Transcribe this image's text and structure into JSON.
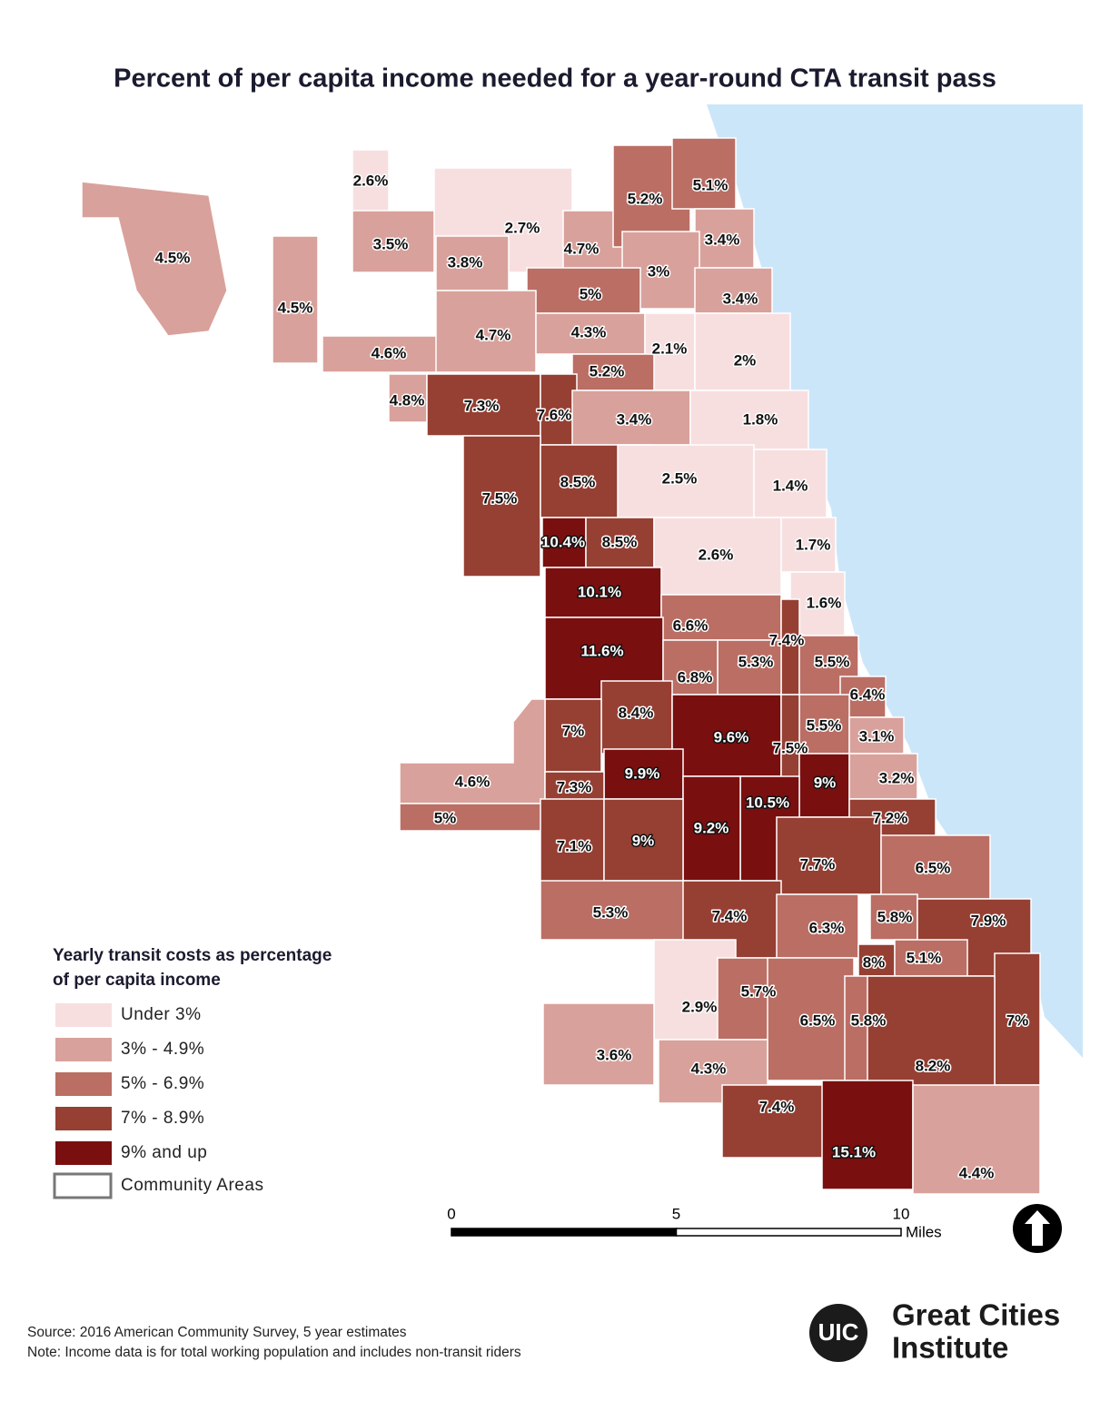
{
  "title": "Percent of per capita income needed for a year-round CTA transit pass",
  "areas": [
    {
      "label": "4.5%",
      "value": 4.5,
      "color": "#d9a19b"
    },
    {
      "label": "2.6%",
      "value": 2.6,
      "color": "#f7dfe0"
    },
    {
      "label": "3.5%",
      "value": 3.5,
      "color": "#d9a19b"
    },
    {
      "label": "2.7%",
      "value": 2.7,
      "color": "#f7dfe0"
    },
    {
      "label": "3.8%",
      "value": 3.8,
      "color": "#d9a19b"
    },
    {
      "label": "4.7%",
      "value": 4.7,
      "color": "#d9a19b"
    },
    {
      "label": "5.2%",
      "value": 5.2,
      "color": "#bb6e64"
    },
    {
      "label": "5.1%",
      "value": 5.1,
      "color": "#bb6e64"
    },
    {
      "label": "3.4%",
      "value": 3.4,
      "color": "#d9a19b"
    },
    {
      "label": "3%",
      "value": 3,
      "color": "#d9a19b"
    },
    {
      "label": "5%",
      "value": 5,
      "color": "#bb6e64"
    },
    {
      "label": "3.4%",
      "value": 3.4,
      "color": "#d9a19b"
    },
    {
      "label": "4.5%",
      "value": 4.5,
      "color": "#d9a19b"
    },
    {
      "label": "4.6%",
      "value": 4.6,
      "color": "#d9a19b"
    },
    {
      "label": "4.7%",
      "value": 4.7,
      "color": "#d9a19b"
    },
    {
      "label": "4.3%",
      "value": 4.3,
      "color": "#d9a19b"
    },
    {
      "label": "2.1%",
      "value": 2.1,
      "color": "#f7dfe0"
    },
    {
      "label": "2%",
      "value": 2,
      "color": "#f7dfe0"
    },
    {
      "label": "5.2%",
      "value": 5.2,
      "color": "#bb6e64"
    },
    {
      "label": "4.8%",
      "value": 4.8,
      "color": "#d9a19b"
    },
    {
      "label": "7.3%",
      "value": 7.3,
      "color": "#963f33"
    },
    {
      "label": "7.6%",
      "value": 7.6,
      "color": "#963f33"
    },
    {
      "label": "3.4%",
      "value": 3.4,
      "color": "#d9a19b"
    },
    {
      "label": "1.8%",
      "value": 1.8,
      "color": "#f7dfe0"
    },
    {
      "label": "7.5%",
      "value": 7.5,
      "color": "#963f33"
    },
    {
      "label": "8.5%",
      "value": 8.5,
      "color": "#963f33"
    },
    {
      "label": "2.5%",
      "value": 2.5,
      "color": "#f7dfe0"
    },
    {
      "label": "1.4%",
      "value": 1.4,
      "color": "#f7dfe0"
    },
    {
      "label": "10.4%",
      "value": 10.4,
      "color": "#7a0f0f"
    },
    {
      "label": "8.5%",
      "value": 8.5,
      "color": "#963f33"
    },
    {
      "label": "2.6%",
      "value": 2.6,
      "color": "#f7dfe0"
    },
    {
      "label": "1.7%",
      "value": 1.7,
      "color": "#f7dfe0"
    },
    {
      "label": "10.1%",
      "value": 10.1,
      "color": "#7a0f0f"
    },
    {
      "label": "1.6%",
      "value": 1.6,
      "color": "#f7dfe0"
    },
    {
      "label": "6.6%",
      "value": 6.6,
      "color": "#bb6e64"
    },
    {
      "label": "11.6%",
      "value": 11.6,
      "color": "#7a0f0f"
    },
    {
      "label": "7.4%",
      "value": 7.4,
      "color": "#963f33"
    },
    {
      "label": "5.3%",
      "value": 5.3,
      "color": "#bb6e64"
    },
    {
      "label": "5.5%",
      "value": 5.5,
      "color": "#bb6e64"
    },
    {
      "label": "6.8%",
      "value": 6.8,
      "color": "#bb6e64"
    },
    {
      "label": "6.4%",
      "value": 6.4,
      "color": "#bb6e64"
    },
    {
      "label": "8.4%",
      "value": 8.4,
      "color": "#963f33"
    },
    {
      "label": "7%",
      "value": 7,
      "color": "#963f33"
    },
    {
      "label": "9.6%",
      "value": 9.6,
      "color": "#7a0f0f"
    },
    {
      "label": "5.5%",
      "value": 5.5,
      "color": "#bb6e64"
    },
    {
      "label": "3.1%",
      "value": 3.1,
      "color": "#d9a19b"
    },
    {
      "label": "7.5%",
      "value": 7.5,
      "color": "#963f33"
    },
    {
      "label": "4.6%",
      "value": 4.6,
      "color": "#d9a19b"
    },
    {
      "label": "5%",
      "value": 5,
      "color": "#bb6e64"
    },
    {
      "label": "9.9%",
      "value": 9.9,
      "color": "#7a0f0f"
    },
    {
      "label": "7.3%",
      "value": 7.3,
      "color": "#963f33"
    },
    {
      "label": "9%",
      "value": 9,
      "color": "#7a0f0f"
    },
    {
      "label": "3.2%",
      "value": 3.2,
      "color": "#d9a19b"
    },
    {
      "label": "10.5%",
      "value": 10.5,
      "color": "#7a0f0f"
    },
    {
      "label": "9.2%",
      "value": 9.2,
      "color": "#7a0f0f"
    },
    {
      "label": "7.2%",
      "value": 7.2,
      "color": "#963f33"
    },
    {
      "label": "7.1%",
      "value": 7.1,
      "color": "#963f33"
    },
    {
      "label": "9%",
      "value": 9,
      "color": "#963f33"
    },
    {
      "label": "7.7%",
      "value": 7.7,
      "color": "#963f33"
    },
    {
      "label": "6.5%",
      "value": 6.5,
      "color": "#bb6e64"
    },
    {
      "label": "5.3%",
      "value": 5.3,
      "color": "#bb6e64"
    },
    {
      "label": "7.4%",
      "value": 7.4,
      "color": "#963f33"
    },
    {
      "label": "6.3%",
      "value": 6.3,
      "color": "#bb6e64"
    },
    {
      "label": "5.8%",
      "value": 5.8,
      "color": "#bb6e64"
    },
    {
      "label": "7.9%",
      "value": 7.9,
      "color": "#963f33"
    },
    {
      "label": "8%",
      "value": 8,
      "color": "#963f33"
    },
    {
      "label": "5.1%",
      "value": 5.1,
      "color": "#bb6e64"
    },
    {
      "label": "2.9%",
      "value": 2.9,
      "color": "#f7dfe0"
    },
    {
      "label": "5.7%",
      "value": 5.7,
      "color": "#bb6e64"
    },
    {
      "label": "6.5%",
      "value": 6.5,
      "color": "#bb6e64"
    },
    {
      "label": "5.8%",
      "value": 5.8,
      "color": "#bb6e64"
    },
    {
      "label": "7%",
      "value": 7,
      "color": "#963f33"
    },
    {
      "label": "3.6%",
      "value": 3.6,
      "color": "#d9a19b"
    },
    {
      "label": "8.2%",
      "value": 8.2,
      "color": "#963f33"
    },
    {
      "label": "4.3%",
      "value": 4.3,
      "color": "#d9a19b"
    },
    {
      "label": "7.4%",
      "value": 7.4,
      "color": "#963f33"
    },
    {
      "label": "15.1%",
      "value": 15.1,
      "color": "#7a0f0f"
    },
    {
      "label": "4.4%",
      "value": 4.4,
      "color": "#d9a19b"
    }
  ],
  "legend": {
    "title_lines": [
      "Yearly transit costs as percentage",
      "of per capita income"
    ],
    "items": [
      {
        "label": "Under 3%",
        "color": "#f7dfe0"
      },
      {
        "label": "3% - 4.9%",
        "color": "#d9a19b"
      },
      {
        "label": "5% - 6.9%",
        "color": "#bb6e64"
      },
      {
        "label": "7% - 8.9%",
        "color": "#963f33"
      },
      {
        "label": "9% and up",
        "color": "#7a0f0f"
      },
      {
        "label": "Community Areas",
        "color": "#ffffff"
      }
    ]
  },
  "scale": {
    "ticks": [
      0,
      5,
      10
    ],
    "unit": "Miles"
  },
  "source": [
    "Source: 2016 American Community Survey, 5 year estimates",
    "Note: Income data is for total working population and includes non-transit riders"
  ],
  "logo": {
    "badge": "UIC",
    "name_lines": [
      "Great Cities",
      "Institute"
    ]
  }
}
